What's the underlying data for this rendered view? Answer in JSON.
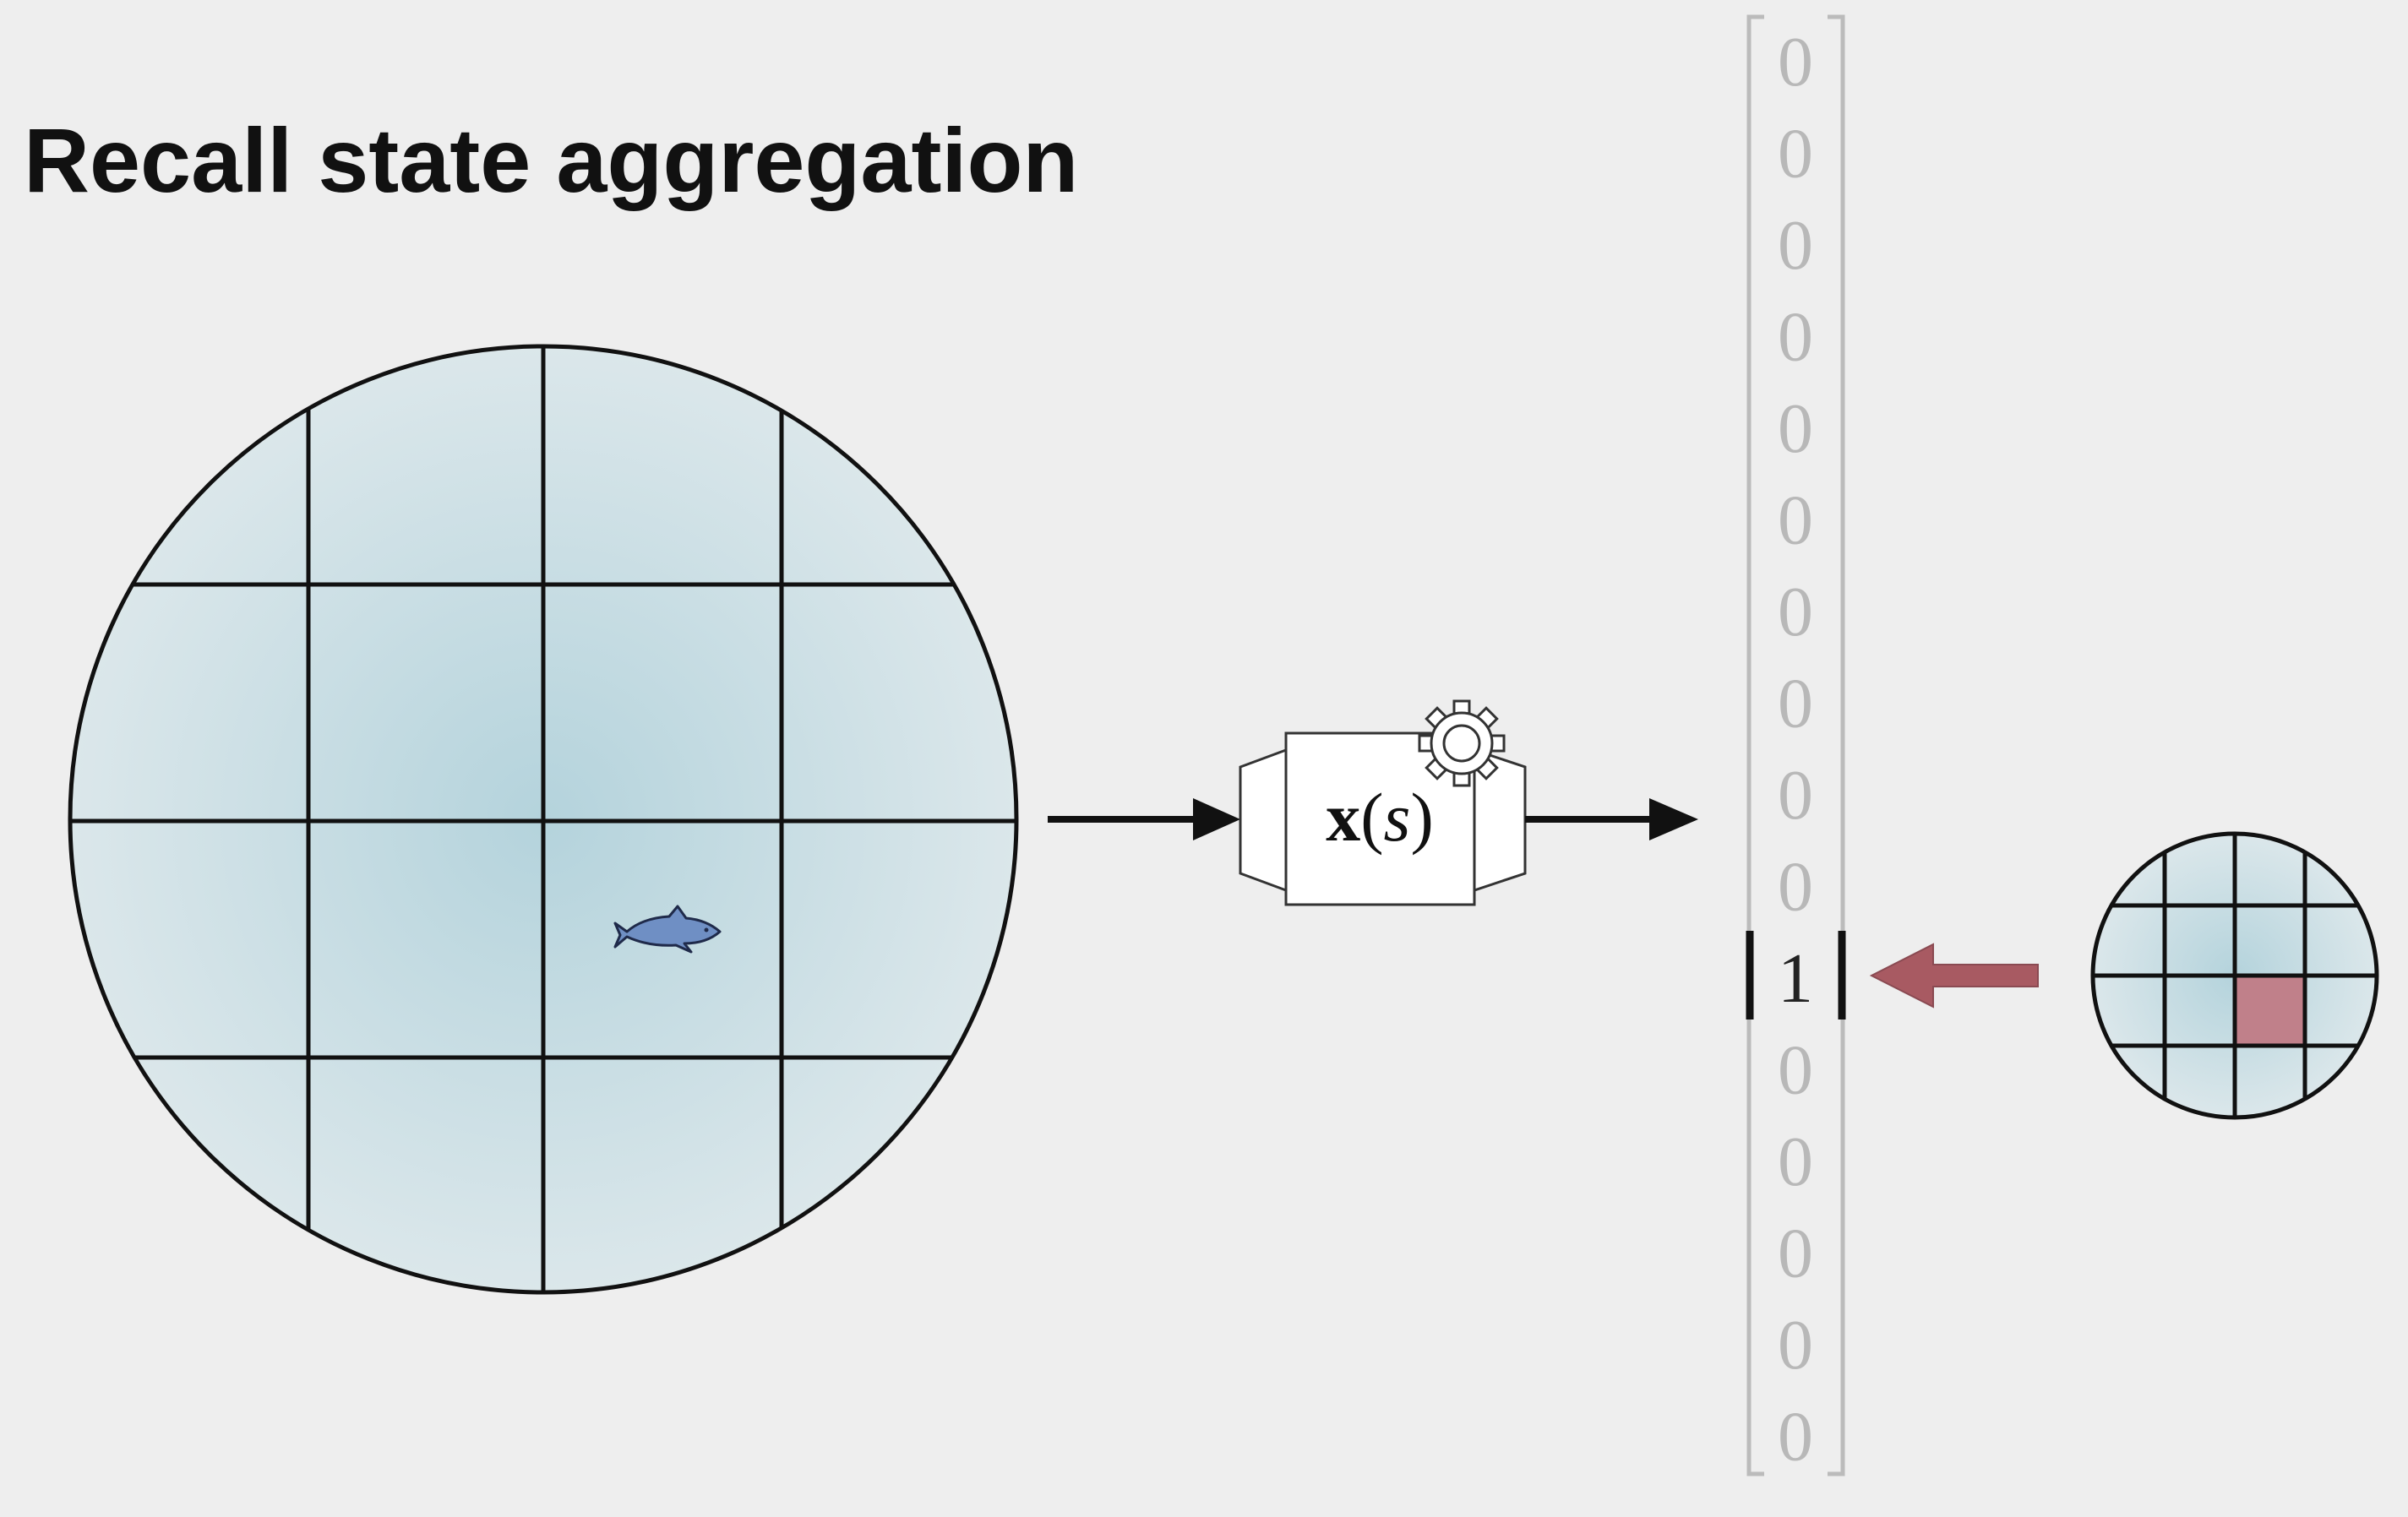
{
  "title": "Recall state aggregation",
  "function_box": {
    "symbol": "x",
    "open_paren": "(",
    "argument": "s",
    "close_paren": ")",
    "icon": "gear-icon"
  },
  "feature_vector": {
    "values": [
      "0",
      "0",
      "0",
      "0",
      "0",
      "0",
      "0",
      "0",
      "0",
      "0",
      "1",
      "0",
      "0",
      "0",
      "0",
      "0"
    ],
    "active_index": 10
  },
  "grid": {
    "large_cells": 16,
    "small_cells": 16,
    "highlight_color": "#c0808a",
    "arrow_color": "#a85a62",
    "tile_color": "#cfe0e6"
  },
  "agent": {
    "icon": "fish-icon",
    "color": "#6f8fc4"
  }
}
